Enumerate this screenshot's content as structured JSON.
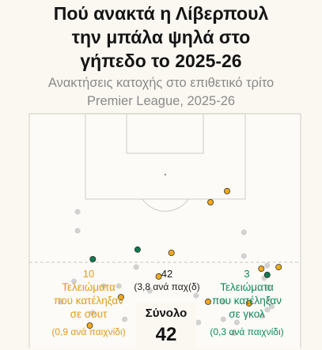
{
  "title": "Πού ανακτά η Λίβερπουλ την μπάλα ψηλά στο γήπεδο το 2025-26",
  "title_lines": [
    "Πού ανακτά η Λίβερπουλ",
    "την μπάλα ψηλά στο",
    "γήπεδο το 2025-26"
  ],
  "subtitle": "Ανακτήσεις κατοχής στο επιθετικό τρίτο Premier League, 2025-26",
  "subtitle_lines": [
    "Ανακτήσεις κατοχής στο επιθετικό τρίτο",
    "Premier League, 2025-26"
  ],
  "colors": {
    "background": "#fbf8f2",
    "shot": "#f2a81c",
    "goal": "#0e7a50",
    "other": "#d2d2d2",
    "pitch_line": "#d8d4cc"
  },
  "stats": {
    "shots": {
      "count": "10",
      "label_lines": [
        "Τελειώματα",
        "που κατέληξαν",
        "σε σουτ"
      ],
      "per_game": "(0,9 ανά παιχνίδι)"
    },
    "all": {
      "count": "42",
      "per_game": "(3,8 ανά παχ(δ)"
    },
    "goals": {
      "count": "3",
      "label_lines": [
        "Τελειώματα",
        "που κατέληξαν",
        "σε γκολ"
      ],
      "per_game": "(0,3 ανά παιχνίδι)"
    },
    "total_label": "Σύνολο",
    "total_value": "42"
  },
  "chart_data": {
    "type": "scatter",
    "title": "Πού ανακτά η Λίβερπουλ την μπάλα ψηλά στο γήπεδο το 2025-26",
    "subtitle": "Ανακτήσεις κατοχής στο επιθετικό τρίτο Premier League, 2025-26",
    "xlabel": "",
    "ylabel": "",
    "units": "pitch width (0–100, left to right) and distance from the opponent's goal line (0–100 across the attacking third)",
    "xlim": [
      0,
      100
    ],
    "ylim": [
      0,
      100
    ],
    "legend": [
      {
        "name": "Τελειώματα που κατέληξαν σε σουτ",
        "color": "#f2a81c"
      },
      {
        "name": "Τελειώματα που κατέληξαν σε γκολ",
        "color": "#0e7a50"
      }
    ],
    "points": [
      {
        "x": 17.8,
        "y": 43.1,
        "outcome": "other"
      },
      {
        "x": 17.8,
        "y": 51.4,
        "outcome": "other"
      },
      {
        "x": 16.5,
        "y": 73.6,
        "outcome": "other"
      },
      {
        "x": 23.4,
        "y": 63.9,
        "outcome": "goal"
      },
      {
        "x": 27.4,
        "y": 75.7,
        "outcome": "other"
      },
      {
        "x": 11.7,
        "y": 82.6,
        "outcome": "other"
      },
      {
        "x": 33.0,
        "y": 75.7,
        "outcome": "other"
      },
      {
        "x": 33.8,
        "y": 80.6,
        "outcome": "shot"
      },
      {
        "x": 23.4,
        "y": 87.5,
        "outcome": "other"
      },
      {
        "x": 22.3,
        "y": 93.1,
        "outcome": "shot"
      },
      {
        "x": 39.9,
        "y": 59.7,
        "outcome": "goal"
      },
      {
        "x": 39.4,
        "y": 67.4,
        "outcome": "other"
      },
      {
        "x": 44.4,
        "y": 77.8,
        "outcome": "other"
      },
      {
        "x": 47.7,
        "y": 71.5,
        "outcome": "shot"
      },
      {
        "x": 47.1,
        "y": 84.7,
        "outcome": "other"
      },
      {
        "x": 49.6,
        "y": 88.9,
        "outcome": "other"
      },
      {
        "x": 52.4,
        "y": 61.1,
        "outcome": "shot"
      },
      {
        "x": 51.3,
        "y": 97.9,
        "outcome": "other"
      },
      {
        "x": 57.6,
        "y": 96.5,
        "outcome": "other"
      },
      {
        "x": 62.3,
        "y": 91.7,
        "outcome": "other"
      },
      {
        "x": 61.5,
        "y": 79.9,
        "outcome": "other"
      },
      {
        "x": 65.9,
        "y": 82.6,
        "outcome": "shot"
      },
      {
        "x": 66.8,
        "y": 38.9,
        "outcome": "shot"
      },
      {
        "x": 72.9,
        "y": 34.0,
        "outcome": "shot"
      },
      {
        "x": 71.5,
        "y": 82.6,
        "outcome": "other"
      },
      {
        "x": 71.5,
        "y": 90.3,
        "outcome": "other"
      },
      {
        "x": 76.5,
        "y": 91.7,
        "outcome": "other"
      },
      {
        "x": 75.4,
        "y": 96.5,
        "outcome": "other"
      },
      {
        "x": 81.0,
        "y": 83.3,
        "outcome": "shot"
      },
      {
        "x": 79.1,
        "y": 52.1,
        "outcome": "other"
      },
      {
        "x": 79.1,
        "y": 62.5,
        "outcome": "other"
      },
      {
        "x": 85.5,
        "y": 68.1,
        "outcome": "shot"
      },
      {
        "x": 86.6,
        "y": 72.2,
        "outcome": "other"
      },
      {
        "x": 87.7,
        "y": 66.7,
        "outcome": "other"
      },
      {
        "x": 87.7,
        "y": 70.8,
        "outcome": "goal"
      },
      {
        "x": 88.0,
        "y": 76.4,
        "outcome": "other"
      },
      {
        "x": 88.3,
        "y": 81.9,
        "outcome": "other"
      },
      {
        "x": 87.7,
        "y": 86.1,
        "outcome": "other"
      },
      {
        "x": 91.9,
        "y": 67.4,
        "outcome": "shot"
      },
      {
        "x": 89.4,
        "y": 84.7,
        "outcome": "other"
      },
      {
        "x": 85.8,
        "y": 88.9,
        "outcome": "other"
      },
      {
        "x": 35.2,
        "y": 90.3,
        "outcome": "other"
      }
    ]
  }
}
